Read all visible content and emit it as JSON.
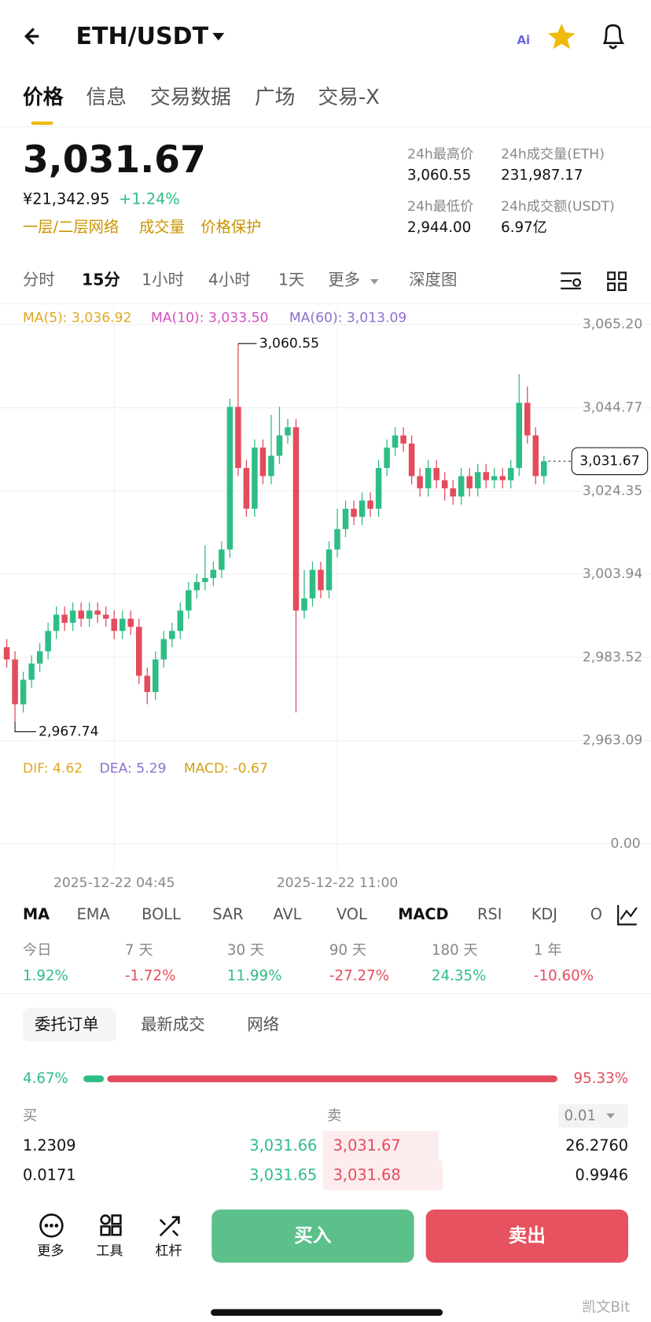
{
  "header": {
    "pair": "ETH/USDT"
  },
  "tabs": [
    "价格",
    "信息",
    "交易数据",
    "广场",
    "交易-X"
  ],
  "price": {
    "last": "3,031.67",
    "cny": "¥21,342.95",
    "change": "+1.24%",
    "links": [
      "一层/二层网络",
      "成交量",
      "价格保护"
    ]
  },
  "stats": [
    {
      "label": "24h最高价",
      "value": "3,060.55"
    },
    {
      "label": "24h成交量(ETH)",
      "value": "231,987.17"
    },
    {
      "label": "24h最低价",
      "value": "2,944.00"
    },
    {
      "label": "24h成交额(USDT)",
      "value": "6.97亿"
    }
  ],
  "intervals": [
    "分时",
    "15分",
    "1小时",
    "4小时",
    "1天",
    "更多",
    "深度图"
  ],
  "chart_data": {
    "type": "candlestick",
    "ma_legend": [
      "MA(5): 3,036.92",
      "MA(10): 3,033.50",
      "MA(60): 3,013.09"
    ],
    "ylim": [
      2960.6,
      3069.3
    ],
    "yticks": [
      {
        "value": 3065.2,
        "label": "3,065.20"
      },
      {
        "value": 3044.77,
        "label": "3,044.77"
      },
      {
        "value": 3024.35,
        "label": "3,024.35"
      },
      {
        "value": 3003.94,
        "label": "3,003.94"
      },
      {
        "value": 2983.52,
        "label": "2,983.52"
      },
      {
        "value": 2963.09,
        "label": "2,963.09"
      }
    ],
    "xticks": [
      {
        "value": 13,
        "label": "2025-12-22 04:45"
      },
      {
        "value": 40,
        "label": "2025-12-22 11:00"
      }
    ],
    "open": [
      2986,
      2983,
      2972,
      2978,
      2982,
      2985,
      2990,
      2994,
      2992,
      2995,
      2993,
      2995,
      2994,
      2993,
      2990,
      2993,
      2991,
      2979,
      2975,
      2983,
      2988,
      2990,
      2995,
      3000,
      3002,
      3003,
      3005,
      3010,
      3045,
      3030,
      3020,
      3035,
      3028,
      3033,
      3038,
      3040,
      2995,
      2998,
      3005,
      3000,
      3010,
      3015,
      3020,
      3018,
      3022,
      3020,
      3030,
      3035,
      3038,
      3036,
      3028,
      3025,
      3030,
      3027,
      3025,
      3023,
      3028,
      3025,
      3029,
      3027,
      3028,
      3027,
      3030,
      3046,
      3038,
      3028
    ],
    "high": [
      2988,
      2985,
      2980,
      2984,
      2987,
      2992,
      2996,
      2996,
      2997,
      2997,
      2997,
      2997,
      2996,
      2995,
      2995,
      2995,
      2993,
      2981,
      2985,
      2990,
      2992,
      2997,
      3002,
      3004,
      3011,
      3007,
      3012,
      3047,
      3060.55,
      3032,
      3037,
      3037,
      3043,
      3045,
      3042,
      3042,
      3005,
      3007,
      3007,
      3012,
      3020,
      3022,
      3022,
      3024,
      3024,
      3032,
      3037,
      3040,
      3040,
      3038,
      3030,
      3032,
      3032,
      3029,
      3027,
      3030,
      3030,
      3031,
      3031,
      3030,
      3030,
      3032,
      3053,
      3050,
      3040,
      3033
    ],
    "low": [
      2981,
      2967.74,
      2970,
      2976,
      2980,
      2983,
      2988,
      2990,
      2990,
      2991,
      2991,
      2992,
      2991,
      2988,
      2988,
      2989,
      2977,
      2972,
      2973,
      2981,
      2986,
      2988,
      2993,
      2998,
      3000,
      3001,
      3003,
      3008,
      3028,
      3018,
      3018,
      3026,
      3026,
      3031,
      3036,
      2970,
      2993,
      2996,
      2998,
      2998,
      3008,
      3013,
      3016,
      3016,
      3018,
      3018,
      3028,
      3033,
      3034,
      3026,
      3023,
      3023,
      3025,
      3022,
      3021,
      3021,
      3023,
      3023,
      3025,
      3025,
      3025,
      3025,
      3028,
      3036,
      3026,
      3026
    ],
    "close": [
      2983,
      2972,
      2978,
      2982,
      2985,
      2990,
      2994,
      2992,
      2995,
      2993,
      2995,
      2994,
      2993,
      2990,
      2993,
      2991,
      2979,
      2975,
      2983,
      2988,
      2990,
      2995,
      3000,
      3002,
      3003,
      3005,
      3010,
      3045,
      3030,
      3020,
      3035,
      3028,
      3033,
      3038,
      3040,
      2995,
      2998,
      3005,
      3000,
      3010,
      3015,
      3020,
      3018,
      3022,
      3020,
      3030,
      3035,
      3038,
      3036,
      3028,
      3025,
      3030,
      3027,
      3025,
      3023,
      3028,
      3025,
      3029,
      3027,
      3028,
      3027,
      3030,
      3046,
      3038,
      3028,
      3031.67
    ],
    "annotations": [
      {
        "label": "3,060.55"
      },
      {
        "label": "2,967.74"
      }
    ],
    "last_price": {
      "value": 3031.67,
      "label": "3,031.67"
    },
    "colors": {
      "up": "#2ebd85",
      "down": "#e34c5c"
    },
    "grid": true
  },
  "macd": {
    "legend": [
      "DIF: 4.62",
      "DEA: 5.29",
      "MACD: -0.67"
    ],
    "zero": "0.00"
  },
  "indicators": [
    "MA",
    "EMA",
    "BOLL",
    "SAR",
    "AVL",
    "VOL",
    "MACD",
    "RSI",
    "KDJ",
    "O"
  ],
  "performance": [
    {
      "period": "今日",
      "value": "1.92%"
    },
    {
      "period": "7 天",
      "value": "-1.72%"
    },
    {
      "period": "30 天",
      "value": "11.99%"
    },
    {
      "period": "90 天",
      "value": "-27.27%"
    },
    {
      "period": "180 天",
      "value": "24.35%"
    },
    {
      "period": "1 年",
      "value": "-10.60%"
    }
  ],
  "orderbook": {
    "tabs": [
      "委托订单",
      "最新成交",
      "网络"
    ],
    "buy_ratio": {
      "value": 4.67,
      "label": "4.67%"
    },
    "sell_ratio": {
      "value": 95.33,
      "label": "95.33%"
    },
    "buy_header": "买",
    "sell_header": "卖",
    "precision": "0.01",
    "rows": [
      [
        "1.2309",
        "3,031.66",
        "3,031.67",
        "26.2760"
      ],
      [
        "0.0171",
        "3,031.65",
        "3,031.68",
        "0.9946"
      ]
    ]
  },
  "footer": {
    "actions": [
      "更多",
      "工具",
      "杠杆"
    ],
    "buy": "买入",
    "sell": "卖出"
  },
  "watermark": "凯文Bit"
}
